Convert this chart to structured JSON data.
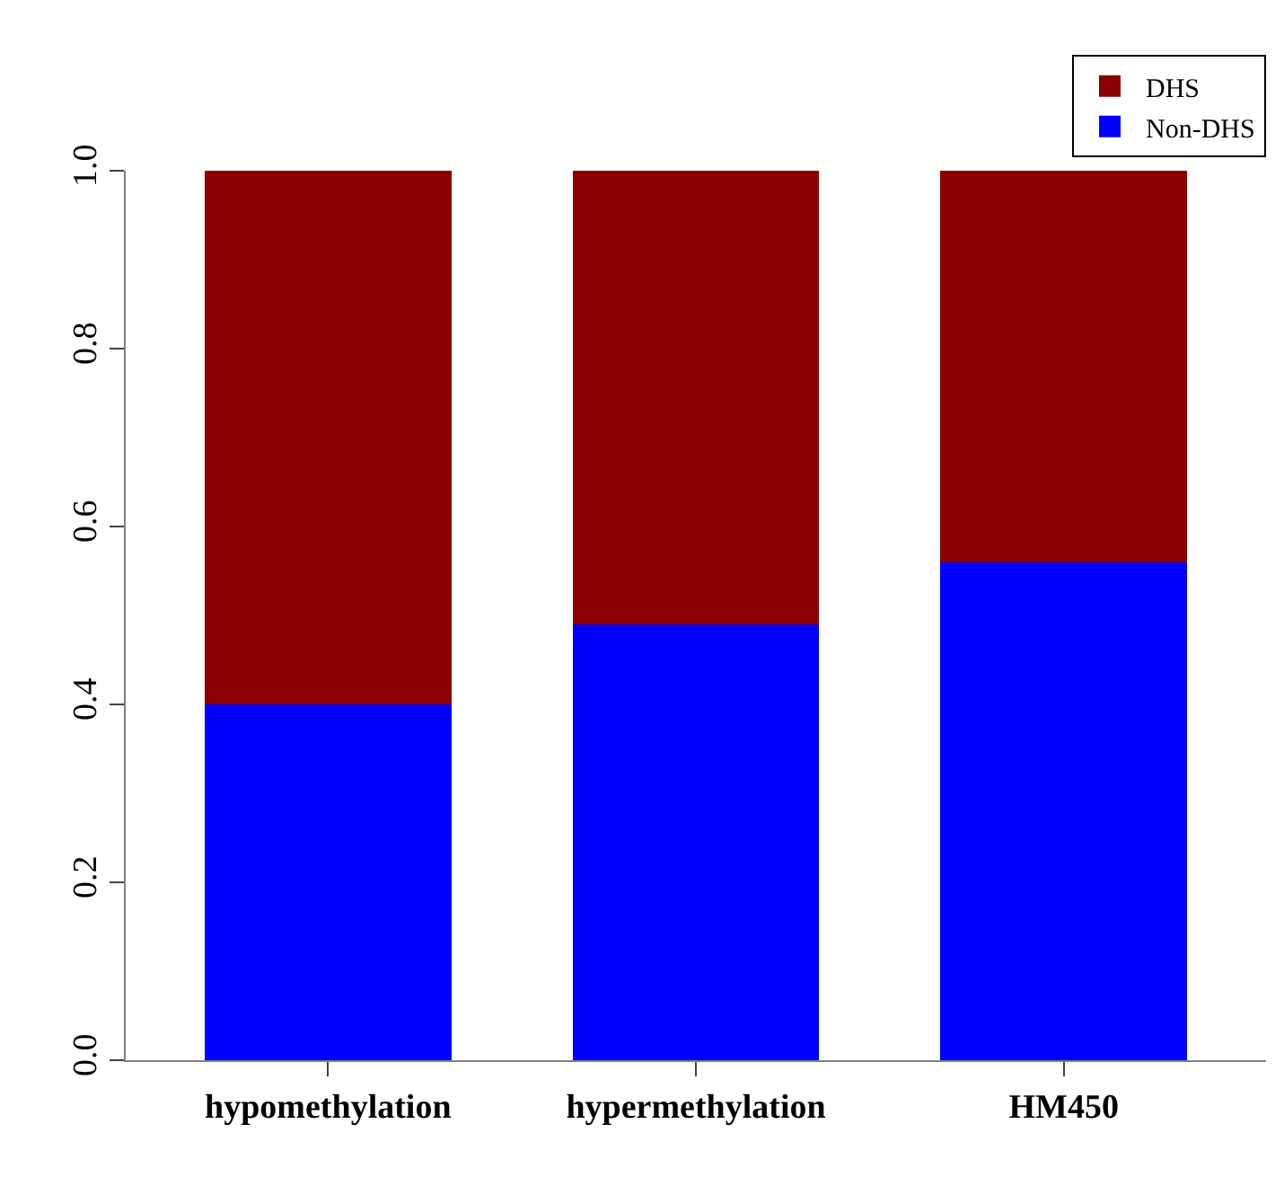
{
  "chart_data": {
    "type": "bar",
    "stacked": true,
    "categories": [
      "hypomethylation",
      "hypermethylation",
      "HM450"
    ],
    "series": [
      {
        "name": "Non-DHS",
        "color": "#0000ff",
        "values": [
          0.4,
          0.49,
          0.56
        ]
      },
      {
        "name": "DHS",
        "color": "#8b0000",
        "values": [
          0.6,
          0.51,
          0.44
        ]
      }
    ],
    "ylim": [
      0,
      1
    ],
    "yticks": [
      "0.0",
      0.2,
      0.4,
      0.6,
      0.8,
      "1.0"
    ],
    "legend": "top right"
  }
}
